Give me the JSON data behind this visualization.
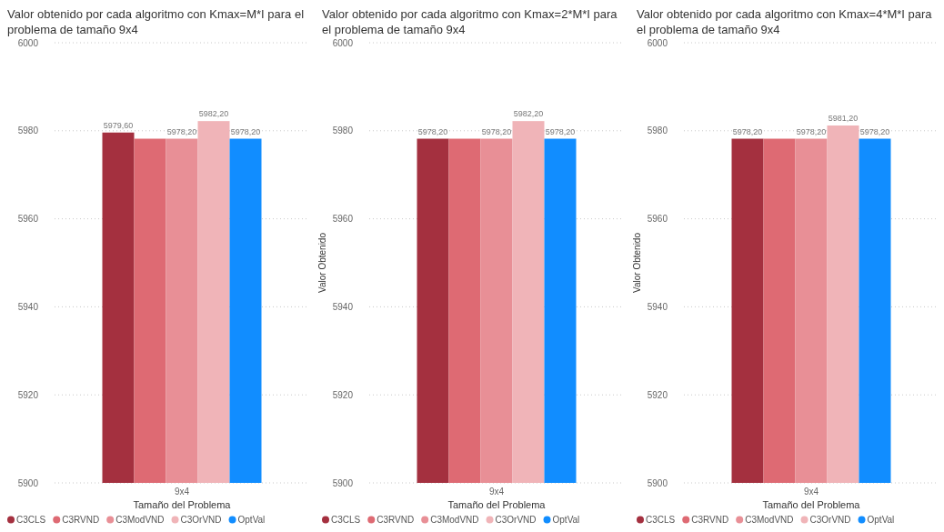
{
  "chart_data": [
    {
      "type": "bar",
      "title": "Valor obtenido por cada algoritmo con Kmax=M*I para el problema de tamaño 9x4",
      "xlabel": "Tamaño del Problema",
      "categories": [
        "9x4"
      ],
      "ylim": [
        5900,
        6000
      ],
      "yticks": [
        5900,
        5920,
        5940,
        5960,
        5980,
        6000
      ],
      "grid": "y",
      "legend": "bottom",
      "series": [
        {
          "name": "C3CLS",
          "color": "#a4303f",
          "values": [
            5979.6
          ],
          "value_labels": [
            "5979,60"
          ]
        },
        {
          "name": "C3RVND",
          "color": "#de6a73",
          "values": [
            5978.2
          ],
          "value_labels": [
            null
          ]
        },
        {
          "name": "C3ModVND",
          "color": "#e88f96",
          "values": [
            5978.2
          ],
          "value_labels": [
            "5978,20"
          ]
        },
        {
          "name": "C3OrVND",
          "color": "#f0b4b8",
          "values": [
            5982.2
          ],
          "value_labels": [
            "5982,20"
          ]
        },
        {
          "name": "OptVal",
          "color": "#118dff",
          "values": [
            5978.2
          ],
          "value_labels": [
            "5978,20"
          ]
        }
      ]
    },
    {
      "type": "bar",
      "title": "Valor obtenido por cada algoritmo con Kmax=2*M*I para el problema de tamaño 9x4",
      "xlabel": "Tamaño del Problema",
      "ylabel": "Valor Obtenido",
      "categories": [
        "9x4"
      ],
      "ylim": [
        5900,
        6000
      ],
      "yticks": [
        5900,
        5920,
        5940,
        5960,
        5980,
        6000
      ],
      "grid": "y",
      "legend": "bottom",
      "series": [
        {
          "name": "C3CLS",
          "color": "#a4303f",
          "values": [
            5978.2
          ],
          "value_labels": [
            "5978,20"
          ]
        },
        {
          "name": "C3RVND",
          "color": "#de6a73",
          "values": [
            5978.2
          ],
          "value_labels": [
            null
          ]
        },
        {
          "name": "C3ModVND",
          "color": "#e88f96",
          "values": [
            5978.2
          ],
          "value_labels": [
            "5978,20"
          ]
        },
        {
          "name": "C3OrVND",
          "color": "#f0b4b8",
          "values": [
            5982.2
          ],
          "value_labels": [
            "5982,20"
          ]
        },
        {
          "name": "OptVal",
          "color": "#118dff",
          "values": [
            5978.2
          ],
          "value_labels": [
            "5978,20"
          ]
        }
      ]
    },
    {
      "type": "bar",
      "title": "Valor obtenido por cada algoritmo con Kmax=4*M*I para el problema de tamaño 9x4",
      "xlabel": "Tamaño del Problema",
      "ylabel": "Valor Obtenido",
      "categories": [
        "9x4"
      ],
      "ylim": [
        5900,
        6000
      ],
      "yticks": [
        5900,
        5920,
        5940,
        5960,
        5980,
        6000
      ],
      "grid": "y",
      "legend": "bottom",
      "series": [
        {
          "name": "C3CLS",
          "color": "#a4303f",
          "values": [
            5978.2
          ],
          "value_labels": [
            "5978,20"
          ]
        },
        {
          "name": "C3RVND",
          "color": "#de6a73",
          "values": [
            5978.2
          ],
          "value_labels": [
            null
          ]
        },
        {
          "name": "C3ModVND",
          "color": "#e88f96",
          "values": [
            5978.2
          ],
          "value_labels": [
            "5978,20"
          ]
        },
        {
          "name": "C3OrVND",
          "color": "#f0b4b8",
          "values": [
            5981.2
          ],
          "value_labels": [
            "5981,20"
          ]
        },
        {
          "name": "OptVal",
          "color": "#118dff",
          "values": [
            5978.2
          ],
          "value_labels": [
            "5978,20"
          ]
        }
      ]
    }
  ]
}
